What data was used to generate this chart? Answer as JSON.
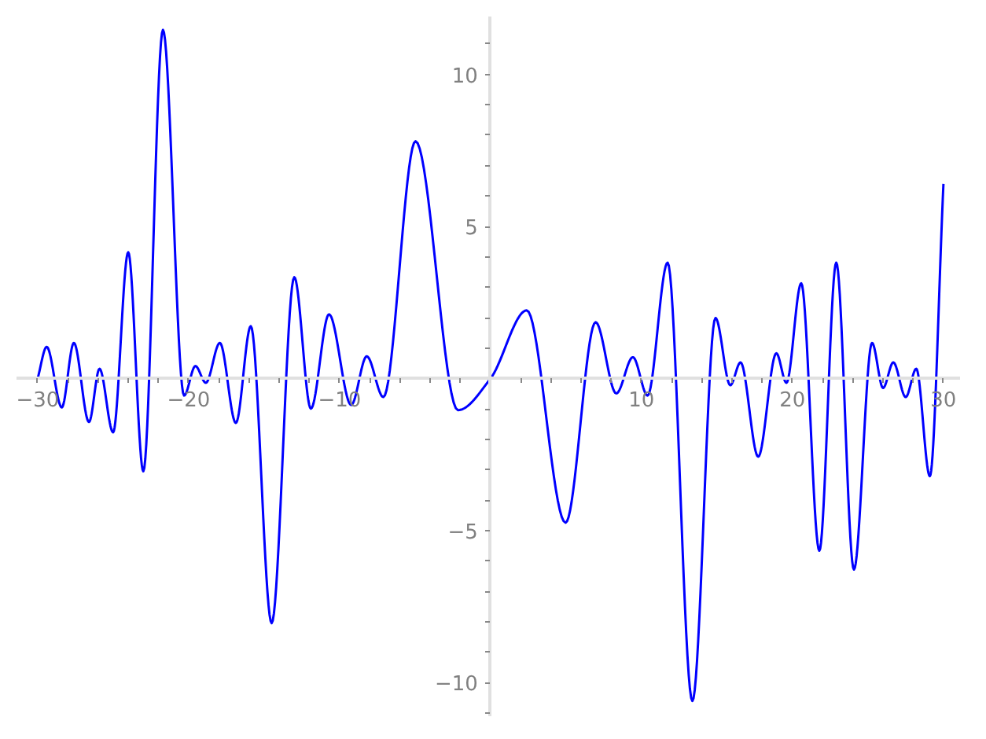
{
  "chart_data": {
    "type": "line",
    "color": "#0000ff",
    "x": [
      -30,
      -29.4,
      -28.4,
      -27.6,
      -26.6,
      -25.9,
      -25.0,
      -24.0,
      -23.0,
      -21.7,
      -20.3,
      -19.55,
      -18.86,
      -17.93,
      -16.87,
      -15.88,
      -14.5,
      -13.0,
      -11.9,
      -10.7,
      -9.23,
      -8.2,
      -7.1,
      -4.97,
      -2.16,
      0,
      2.4,
      4.97,
      6.96,
      8.33,
      9.43,
      10.4,
      11.73,
      13.37,
      14.9,
      15.88,
      16.56,
      17.73,
      18.93,
      19.6,
      20.58,
      21.78,
      22.9,
      24.07,
      25.27,
      26.0,
      26.68,
      27.5,
      28.2,
      29.1,
      30
    ],
    "values": [
      0,
      1.04,
      -0.95,
      1.17,
      -1.43,
      0.32,
      -1.77,
      4.15,
      -3.05,
      11.46,
      -0.56,
      0.41,
      -0.14,
      1.17,
      -1.46,
      1.72,
      -8.04,
      3.33,
      -0.99,
      2.11,
      -0.87,
      0.73,
      -0.61,
      7.8,
      -1.04,
      0,
      2.24,
      -4.74,
      1.85,
      -0.49,
      0.7,
      -0.56,
      3.81,
      -10.6,
      1.99,
      -0.22,
      0.53,
      -2.57,
      0.83,
      -0.14,
      3.13,
      -5.66,
      3.81,
      -6.28,
      1.17,
      -0.31,
      0.53,
      -0.61,
      0.32,
      -3.21,
      6.4
    ],
    "xlim": [
      -31.4,
      31.1
    ],
    "ylim": [
      -11.1,
      11.9
    ],
    "xticks": [
      {
        "value": -30,
        "label": "−30"
      },
      {
        "value": -28,
        "label": null
      },
      {
        "value": -26,
        "label": null
      },
      {
        "value": -24,
        "label": null
      },
      {
        "value": -22,
        "label": null
      },
      {
        "value": -20,
        "label": "−20"
      },
      {
        "value": -18,
        "label": null
      },
      {
        "value": -16,
        "label": null
      },
      {
        "value": -14,
        "label": null
      },
      {
        "value": -12,
        "label": null
      },
      {
        "value": -10,
        "label": "−10"
      },
      {
        "value": -8,
        "label": null
      },
      {
        "value": -6,
        "label": null
      },
      {
        "value": -4,
        "label": null
      },
      {
        "value": -2,
        "label": null
      },
      {
        "value": 2,
        "label": null
      },
      {
        "value": 4,
        "label": null
      },
      {
        "value": 6,
        "label": null
      },
      {
        "value": 8,
        "label": null
      },
      {
        "value": 10,
        "label": "10"
      },
      {
        "value": 12,
        "label": null
      },
      {
        "value": 14,
        "label": null
      },
      {
        "value": 16,
        "label": null
      },
      {
        "value": 18,
        "label": null
      },
      {
        "value": 20,
        "label": "20"
      },
      {
        "value": 22,
        "label": null
      },
      {
        "value": 24,
        "label": null
      },
      {
        "value": 26,
        "label": null
      },
      {
        "value": 28,
        "label": null
      },
      {
        "value": 30,
        "label": "30"
      }
    ],
    "yticks": [
      {
        "value": -11,
        "label": null
      },
      {
        "value": -10,
        "label": "−10"
      },
      {
        "value": -9,
        "label": null
      },
      {
        "value": -8,
        "label": null
      },
      {
        "value": -7,
        "label": null
      },
      {
        "value": -6,
        "label": null
      },
      {
        "value": -5,
        "label": "−5"
      },
      {
        "value": -4,
        "label": null
      },
      {
        "value": -3,
        "label": null
      },
      {
        "value": -2,
        "label": null
      },
      {
        "value": -1,
        "label": null
      },
      {
        "value": 1,
        "label": null
      },
      {
        "value": 2,
        "label": null
      },
      {
        "value": 3,
        "label": null
      },
      {
        "value": 4,
        "label": null
      },
      {
        "value": 5,
        "label": "5"
      },
      {
        "value": 6,
        "label": null
      },
      {
        "value": 7,
        "label": null
      },
      {
        "value": 8,
        "label": null
      },
      {
        "value": 9,
        "label": null
      },
      {
        "value": 10,
        "label": "10"
      },
      {
        "value": 11,
        "label": null
      }
    ]
  }
}
